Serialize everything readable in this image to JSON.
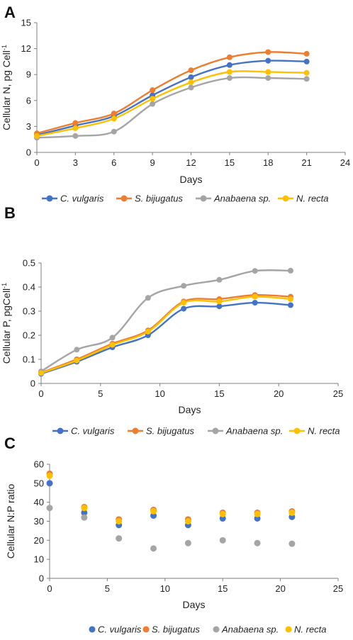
{
  "series_colors": [
    "#4472c4",
    "#ed7d31",
    "#a5a5a5",
    "#ffc000"
  ],
  "chart_data": [
    {
      "type": "line",
      "panel": "A",
      "xlabel": "Days",
      "ylabel": "Cellular N, pg Cell",
      "ylabel_sup": "-1",
      "xlim": [
        0,
        24
      ],
      "ylim": [
        0,
        15
      ],
      "xticks": [
        0,
        3,
        6,
        9,
        12,
        15,
        18,
        21,
        24
      ],
      "yticks": [
        0,
        3,
        6,
        9,
        12,
        15
      ],
      "grid": false,
      "legend": "bottom",
      "x": [
        0,
        3,
        6,
        9,
        12,
        15,
        18,
        21
      ],
      "series": [
        {
          "name": "C. vulgaris",
          "values": [
            2.0,
            3.1,
            4.2,
            6.6,
            8.7,
            10.1,
            10.6,
            10.5
          ]
        },
        {
          "name": "S. bijugatus",
          "values": [
            2.2,
            3.4,
            4.5,
            7.2,
            9.5,
            11.0,
            11.6,
            11.4
          ]
        },
        {
          "name": "Anabaena sp.",
          "values": [
            1.7,
            1.9,
            2.4,
            5.6,
            7.5,
            8.6,
            8.6,
            8.5
          ]
        },
        {
          "name": "N. recta",
          "values": [
            1.9,
            2.8,
            3.9,
            6.2,
            8.1,
            9.3,
            9.3,
            9.2
          ]
        }
      ]
    },
    {
      "type": "line",
      "panel": "B",
      "xlabel": "Days",
      "ylabel": "Cellular P, pgCell",
      "ylabel_sup": "-1",
      "xlim": [
        0,
        25
      ],
      "ylim": [
        0,
        0.5
      ],
      "xticks": [
        0,
        5,
        10,
        15,
        20,
        25
      ],
      "yticks": [
        0,
        0.1,
        0.2,
        0.3,
        0.4,
        0.5
      ],
      "grid": false,
      "legend": "bottom",
      "x": [
        0,
        3,
        6,
        9,
        12,
        15,
        18,
        21
      ],
      "series": [
        {
          "name": "C. vulgaris",
          "values": [
            0.04,
            0.09,
            0.15,
            0.2,
            0.31,
            0.32,
            0.335,
            0.325
          ]
        },
        {
          "name": "S. bijugatus",
          "values": [
            0.045,
            0.1,
            0.165,
            0.22,
            0.34,
            0.35,
            0.367,
            0.36
          ]
        },
        {
          "name": "Anabaena sp.",
          "values": [
            0.05,
            0.14,
            0.19,
            0.355,
            0.405,
            0.43,
            0.467,
            0.468
          ]
        },
        {
          "name": "N. recta",
          "values": [
            0.043,
            0.095,
            0.16,
            0.215,
            0.335,
            0.34,
            0.36,
            0.35
          ]
        }
      ]
    },
    {
      "type": "scatter",
      "panel": "C",
      "xlabel": "Days",
      "ylabel": "Cellular N:P ratio",
      "ylabel_sup": "",
      "xlim": [
        0,
        25
      ],
      "ylim": [
        0,
        60
      ],
      "xticks": [
        0,
        5,
        10,
        15,
        20,
        25
      ],
      "yticks": [
        0,
        10,
        20,
        30,
        40,
        50,
        60
      ],
      "grid": false,
      "legend": "bottom",
      "x": [
        0,
        3,
        6,
        9,
        12,
        15,
        18,
        21
      ],
      "series": [
        {
          "name": "C. vulgaris",
          "values": [
            50,
            34.5,
            28,
            33,
            28,
            31.5,
            31.5,
            32.3
          ]
        },
        {
          "name": "S. bijugatus",
          "values": [
            55,
            37.5,
            31,
            36,
            31,
            34.5,
            34.5,
            35.2
          ]
        },
        {
          "name": "Anabaena sp.",
          "values": [
            37,
            32,
            21,
            15.7,
            18.5,
            20,
            18.5,
            18.2
          ]
        },
        {
          "name": "N. recta",
          "values": [
            54,
            37,
            30,
            35.3,
            30,
            33.8,
            33.8,
            34.5
          ]
        }
      ]
    }
  ]
}
